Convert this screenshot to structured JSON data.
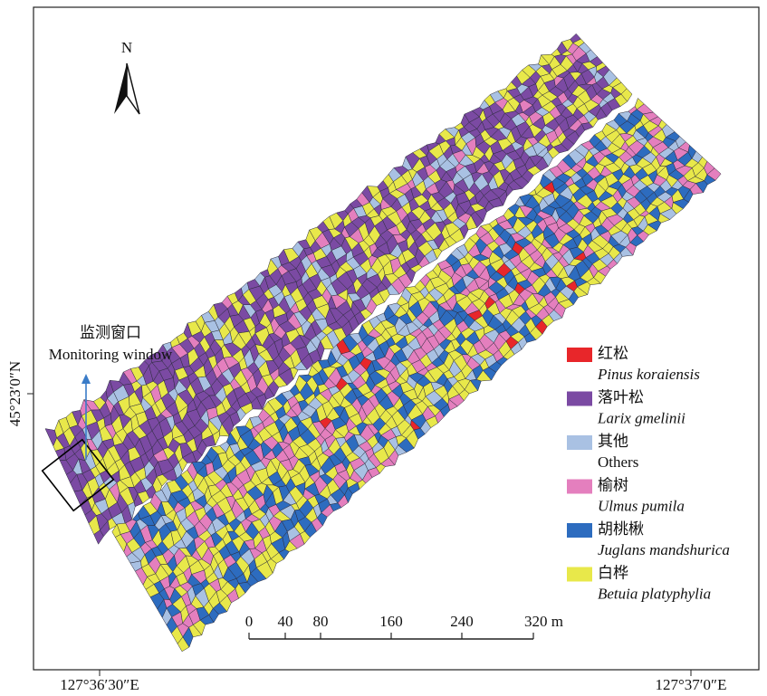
{
  "map": {
    "north": "N",
    "annotation": {
      "zh": "监测窗口",
      "en": "Monitoring window"
    },
    "legend": [
      {
        "zh": "红松",
        "latin": "Pinus koraiensis",
        "italic": true,
        "color": "#e8262a"
      },
      {
        "zh": "落叶松",
        "latin": "Larix gmelinii",
        "italic": true,
        "color": "#7b4aa3"
      },
      {
        "zh": "其他",
        "latin": "Others",
        "italic": false,
        "color": "#a9c1e3"
      },
      {
        "zh": "榆树",
        "latin": "Ulmus pumila",
        "italic": true,
        "color": "#e47fbe"
      },
      {
        "zh": "胡桃楸",
        "latin": "Juglans mandshurica",
        "italic": true,
        "color": "#2d6cbf"
      },
      {
        "zh": "白桦",
        "latin": "Betuia platyphylia",
        "italic": true,
        "color": "#e8e84a"
      }
    ],
    "scale_bar": [
      "0",
      "40",
      "80",
      "160",
      "240",
      "320 m"
    ],
    "y_label": "45°23′0″N",
    "x_labels": [
      "127°36′30″E",
      "127°37′0″E"
    ]
  }
}
